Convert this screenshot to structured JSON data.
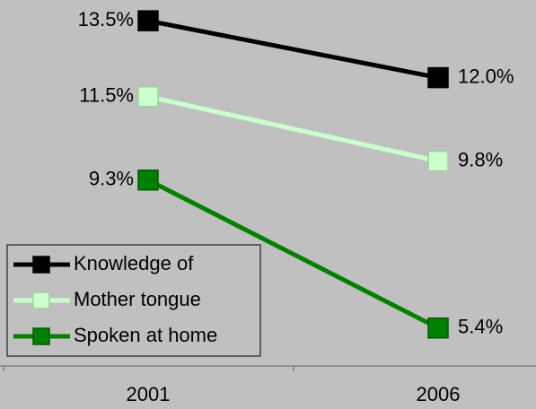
{
  "chart_data": {
    "type": "line",
    "categories": [
      "2001",
      "2006"
    ],
    "series": [
      {
        "name": "Knowledge of",
        "color": "#000000",
        "values": [
          13.5,
          12.0
        ],
        "value_labels": [
          "13.5%",
          "12.0%"
        ]
      },
      {
        "name": "Mother tongue",
        "color": "#ccffcc",
        "values": [
          11.5,
          9.8
        ],
        "value_labels": [
          "11.5%",
          "9.8%"
        ]
      },
      {
        "name": "Spoken at home",
        "color": "#008000",
        "values": [
          9.3,
          5.4
        ],
        "value_labels": [
          "9.3%",
          "5.4%"
        ]
      }
    ],
    "ylim": [
      4.4,
      14.0
    ],
    "legend": "lower left"
  }
}
